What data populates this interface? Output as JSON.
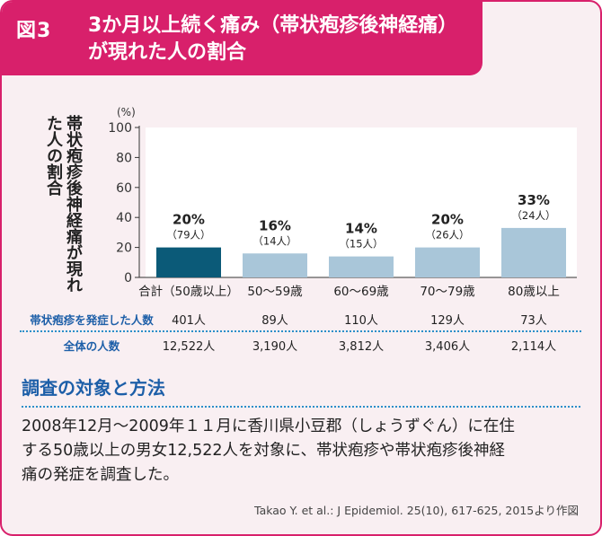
{
  "header": {
    "figure_label": "図3",
    "title": "3か月以上続く痛み（帯状疱疹後神経痛）が現れた人の割合"
  },
  "chart_data": {
    "type": "bar",
    "ylabel": "帯状疱疹後神経痛が現れた人の割合",
    "y_unit": "(%)",
    "ylim": [
      0,
      100
    ],
    "yticks": [
      "0",
      "20",
      "40",
      "60",
      "80",
      "100"
    ],
    "grid": false,
    "categories": [
      "合計（50歳以上）",
      "50〜59歳",
      "60〜69歳",
      "70〜79歳",
      "80歳以上"
    ],
    "values": [
      20,
      16,
      14,
      20,
      33
    ],
    "value_labels": [
      "20%",
      "16%",
      "14%",
      "20%",
      "33%"
    ],
    "count_labels": [
      "（79人）",
      "（14人）",
      "（15人）",
      "（26人）",
      "（24人）"
    ],
    "bar_colors": [
      "#0b5a78",
      "#a9c6d9",
      "#a9c6d9",
      "#a9c6d9",
      "#a9c6d9"
    ]
  },
  "table": {
    "rows": [
      {
        "label": "帯状疱疹を発症した人数",
        "values": [
          "401人",
          "89人",
          "110人",
          "129人",
          "73人"
        ]
      },
      {
        "label": "全体の人数",
        "values": [
          "12,522人",
          "3,190人",
          "3,812人",
          "3,406人",
          "2,114人"
        ]
      }
    ]
  },
  "section": {
    "title": "調査の対象と方法",
    "line1": "2008年12月〜2009年１１月に香川県小豆郡（しょうずぐん）に在住",
    "line2": "する50歳以上の男女12,522人を対象に、帯状疱疹や帯状疱疹後神経",
    "line3": "痛の発症を調査した。"
  },
  "source": "Takao Y. et al.: J Epidemiol. 25(10), 617-625, 2015より作図",
  "colors": {
    "accent": "#d8206b",
    "frame_bg": "#f9eff2",
    "bar_highlight": "#0b5a78",
    "bar_default": "#a9c6d9",
    "blue_text": "#1d5fa8"
  }
}
